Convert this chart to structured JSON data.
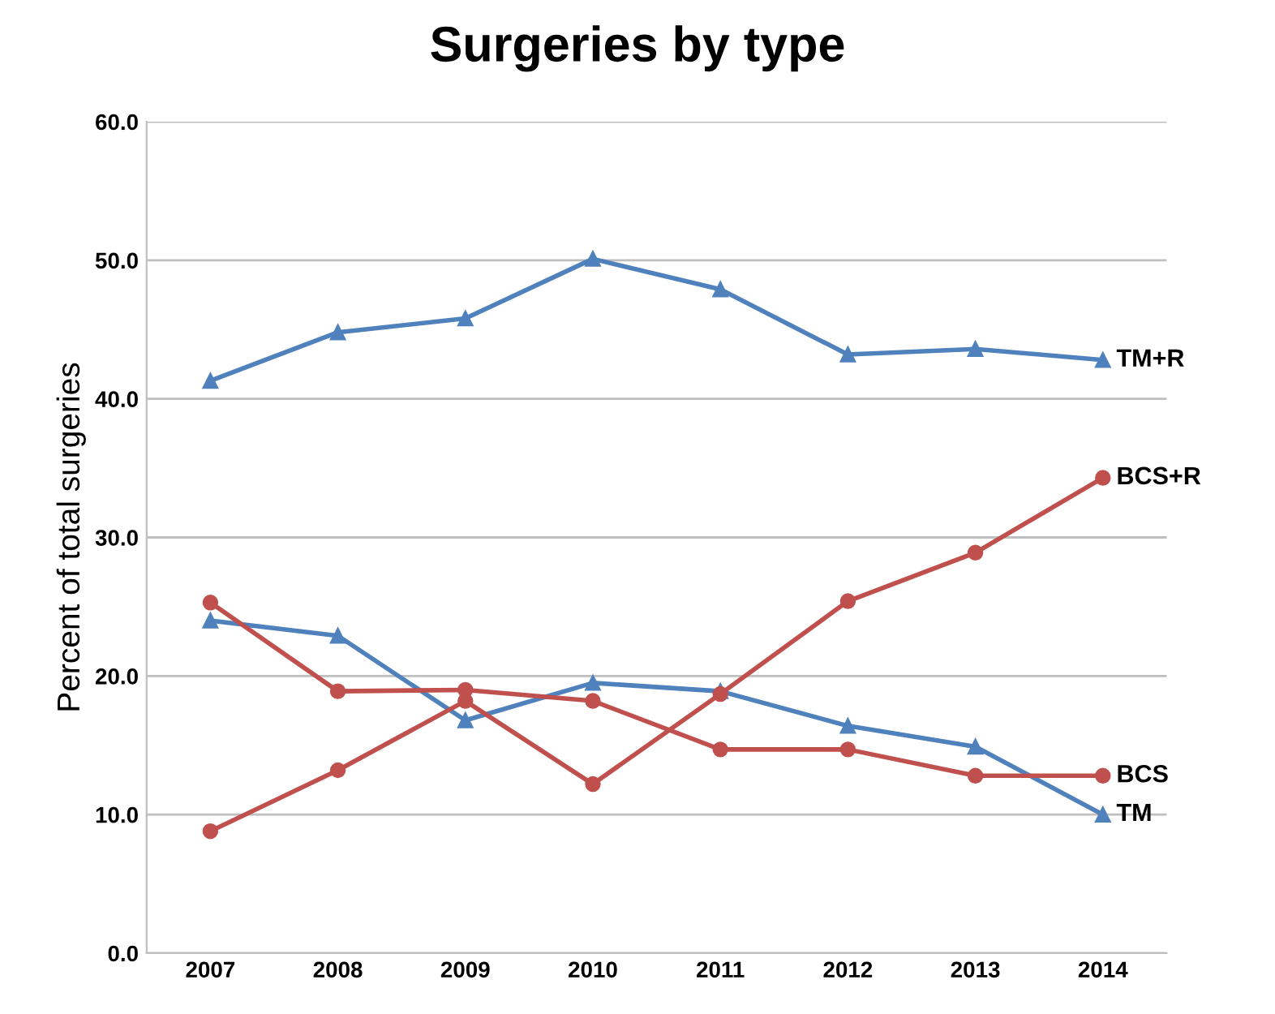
{
  "chart_data": {
    "type": "line",
    "title": "Surgeries by type",
    "ylabel": "Percent of total surgeries",
    "categories": [
      "2007",
      "2008",
      "2009",
      "2010",
      "2011",
      "2012",
      "2013",
      "2014"
    ],
    "series": [
      {
        "name": "TM+R",
        "color": "#4f81bd",
        "marker": "triangle",
        "values": [
          41.3,
          44.8,
          45.8,
          50.1,
          47.9,
          43.2,
          43.6,
          42.8
        ]
      },
      {
        "name": "BCS+R",
        "color": "#c0504d",
        "marker": "circle",
        "values": [
          8.8,
          13.2,
          18.2,
          12.2,
          18.7,
          25.4,
          28.9,
          34.3
        ]
      },
      {
        "name": "BCS",
        "color": "#c0504d",
        "marker": "circle",
        "values": [
          25.3,
          18.9,
          19.0,
          18.2,
          14.7,
          14.7,
          12.8,
          12.8
        ]
      },
      {
        "name": "TM",
        "color": "#4f81bd",
        "marker": "triangle",
        "values": [
          24.0,
          22.9,
          16.8,
          19.5,
          18.9,
          16.4,
          14.9,
          10.0
        ]
      }
    ],
    "ylim": [
      0,
      60
    ],
    "yticks": [
      {
        "value": 0,
        "label": "0.0"
      },
      {
        "value": 10,
        "label": "10.0"
      },
      {
        "value": 20,
        "label": "20.0"
      },
      {
        "value": 30,
        "label": "30.0"
      },
      {
        "value": 40,
        "label": "40.0"
      },
      {
        "value": 50,
        "label": "50.0"
      },
      {
        "value": 60,
        "label": "60.0"
      }
    ],
    "grid": "y",
    "legend": false
  }
}
